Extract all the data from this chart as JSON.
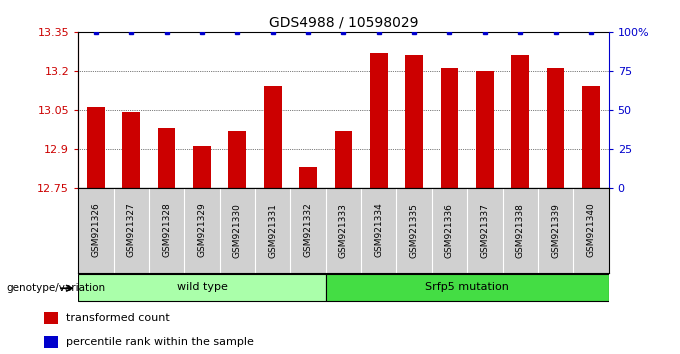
{
  "title": "GDS4988 / 10598029",
  "samples": [
    "GSM921326",
    "GSM921327",
    "GSM921328",
    "GSM921329",
    "GSM921330",
    "GSM921331",
    "GSM921332",
    "GSM921333",
    "GSM921334",
    "GSM921335",
    "GSM921336",
    "GSM921337",
    "GSM921338",
    "GSM921339",
    "GSM921340"
  ],
  "transformed_counts": [
    13.06,
    13.04,
    12.98,
    12.91,
    12.97,
    13.14,
    12.83,
    12.97,
    13.27,
    13.26,
    13.21,
    13.2,
    13.26,
    13.21,
    13.14
  ],
  "percentile_ranks": [
    100,
    100,
    100,
    100,
    100,
    100,
    100,
    100,
    100,
    100,
    100,
    100,
    100,
    100,
    100
  ],
  "ylim_left": [
    12.75,
    13.35
  ],
  "ylim_right": [
    0,
    100
  ],
  "yticks_left": [
    12.75,
    12.9,
    13.05,
    13.2,
    13.35
  ],
  "yticks_left_labels": [
    "12.75",
    "12.9",
    "13.05",
    "13.2",
    "13.35"
  ],
  "yticks_right": [
    0,
    25,
    50,
    75,
    100
  ],
  "yticks_right_labels": [
    "0",
    "25",
    "50",
    "75",
    "100%"
  ],
  "bar_color": "#cc0000",
  "dot_color": "#0000cc",
  "grid_color": "#000000",
  "groups": [
    {
      "label": "wild type",
      "start": 0,
      "end": 7,
      "color": "#aaffaa",
      "edge_color": "#000000"
    },
    {
      "label": "Srfp5 mutation",
      "start": 7,
      "end": 15,
      "color": "#44dd44",
      "edge_color": "#000000"
    }
  ],
  "legend_items": [
    {
      "label": "transformed count",
      "color": "#cc0000"
    },
    {
      "label": "percentile rank within the sample",
      "color": "#0000cc"
    }
  ],
  "xlabel_genotype": "genotype/variation",
  "background_color": "#ffffff",
  "tick_area_color": "#d0d0d0",
  "bar_width": 0.5
}
